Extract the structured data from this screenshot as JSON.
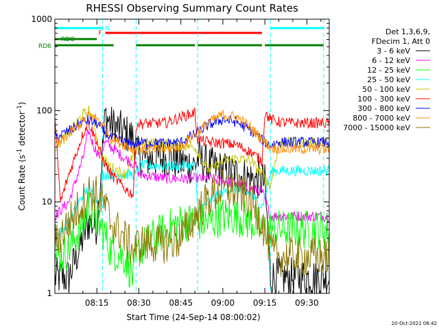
{
  "chart_data": {
    "type": "line",
    "title": "RHESSI Observing Summary Count Rates",
    "xlabel": "Start Time (24-Sep-14 08:00:02)",
    "ylabel": "Count Rate (s",
    "ylabel_sup1": "-1",
    "ylabel_mid": " detector",
    "ylabel_sup2": "-1",
    "ylabel_end": ")",
    "y_scale": "log",
    "ylim": [
      1,
      1000
    ],
    "xlim": [
      "08:00",
      "09:38"
    ],
    "x_ticks": [
      "08:15",
      "08:30",
      "08:45",
      "09:00",
      "09:15",
      "09:30"
    ],
    "y_ticks": [
      "1",
      "10",
      "100",
      "1000"
    ],
    "legend_header": [
      "Det 1,3,6,9,",
      "FDecim 1, Att 0"
    ],
    "flags": [
      {
        "label": "N",
        "color": "#00ffff",
        "segments": [
          [
            "08:00",
            "08:17"
          ],
          [
            "09:17",
            "09:36"
          ]
        ]
      },
      {
        "label": "F",
        "color": "#ff0000",
        "segments": [
          [
            "08:18",
            "09:14"
          ]
        ]
      },
      {
        "label": "RDO",
        "color": "#008000",
        "segments": [
          [
            "08:00",
            "08:15"
          ]
        ]
      },
      {
        "label": "RD6",
        "color": "#008000",
        "segments": [
          [
            "08:00",
            "08:21"
          ],
          [
            "08:29",
            "08:50"
          ],
          [
            "08:51",
            "09:14"
          ],
          [
            "09:15",
            "09:36"
          ]
        ]
      }
    ],
    "day_night_lines": [
      "08:17",
      "08:29",
      "08:51",
      "09:17",
      "09:36"
    ],
    "series": [
      {
        "name": "3 - 6 keV",
        "color": "#000000",
        "x": [
          "08:00",
          "08:05",
          "08:10",
          "08:12",
          "08:15",
          "08:18",
          "08:20",
          "08:24",
          "08:28",
          "08:30",
          "08:35",
          "08:40",
          "08:45",
          "08:50",
          "08:51",
          "08:55",
          "09:00",
          "09:05",
          "09:10",
          "09:14",
          "09:15",
          "09:17",
          "09:20",
          "09:25",
          "09:30",
          "09:36"
        ],
        "values": [
          1.5,
          1.5,
          4,
          6,
          5.5,
          90,
          70,
          60,
          50,
          30,
          30,
          30,
          27,
          25,
          30,
          25,
          22,
          20,
          18,
          17,
          16,
          1.5,
          1.5,
          1.5,
          1.5,
          1.5
        ]
      },
      {
        "name": "6 - 12 keV",
        "color": "#ff00ff",
        "x": [
          "08:00",
          "08:05",
          "08:10",
          "08:12",
          "08:14",
          "08:16",
          "08:18",
          "08:20",
          "08:25",
          "08:29",
          "08:30",
          "08:35",
          "08:40",
          "08:45",
          "08:50",
          "08:51",
          "08:55",
          "09:00",
          "09:05",
          "09:10",
          "09:14",
          "09:17",
          "09:20",
          "09:25",
          "09:30",
          "09:36"
        ],
        "values": [
          7,
          10,
          30,
          60,
          40,
          32,
          45,
          40,
          30,
          25,
          20,
          19,
          18,
          18,
          18,
          18,
          18,
          17,
          16,
          14,
          13,
          7,
          7,
          7,
          7,
          7
        ]
      },
      {
        "name": "12 - 25 keV",
        "color": "#00ff00",
        "x": [
          "08:00",
          "08:05",
          "08:10",
          "08:12",
          "08:14",
          "08:17",
          "08:20",
          "08:25",
          "08:28",
          "08:30",
          "08:35",
          "08:40",
          "08:45",
          "08:50",
          "08:55",
          "09:00",
          "09:05",
          "09:10",
          "09:15",
          "09:20",
          "09:25",
          "09:30",
          "09:36"
        ],
        "values": [
          2.5,
          3,
          6,
          9,
          7,
          5,
          3,
          2.5,
          1.5,
          3,
          4,
          5,
          6,
          6,
          6,
          7,
          7,
          6,
          5,
          5,
          5,
          5,
          5
        ]
      },
      {
        "name": "25 - 50 keV",
        "color": "#00ffff",
        "x": [
          "08:00",
          "08:05",
          "08:10",
          "08:12",
          "08:14",
          "08:16",
          "08:17",
          "08:20",
          "08:25",
          "08:29",
          "08:30",
          "08:35",
          "08:40",
          "08:45",
          "08:50",
          "08:51",
          "08:55",
          "09:00",
          "09:05",
          "09:10",
          "09:14",
          "09:17",
          "09:18",
          "09:25",
          "09:30",
          "09:36"
        ],
        "values": [
          4,
          6,
          12,
          14,
          12,
          9,
          20,
          20,
          20,
          20,
          25,
          25,
          25,
          25,
          25,
          8,
          10,
          13,
          14,
          12,
          9,
          20,
          22,
          22,
          22,
          22
        ]
      },
      {
        "name": "50 - 100 keV",
        "color": "#c8c800",
        "x": [
          "08:00",
          "08:05",
          "08:08",
          "08:10",
          "08:12",
          "08:14",
          "08:16",
          "08:18",
          "08:20",
          "08:25",
          "08:30",
          "08:35",
          "08:40",
          "08:45",
          "08:50",
          "08:55",
          "09:00",
          "09:05",
          "09:10",
          "09:14",
          "09:17",
          "09:20",
          "09:25",
          "09:30",
          "09:36"
        ],
        "values": [
          40,
          55,
          75,
          90,
          100,
          75,
          35,
          28,
          24,
          20,
          45,
          44,
          43,
          42,
          40,
          22,
          28,
          30,
          28,
          20,
          15,
          45,
          45,
          45,
          45
        ]
      },
      {
        "name": "100 - 300 keV",
        "color": "#ff0000",
        "x": [
          "08:00",
          "08:02",
          "08:05",
          "08:10",
          "08:12",
          "08:15",
          "08:17",
          "08:20",
          "08:25",
          "08:28",
          "08:29",
          "08:30",
          "08:35",
          "08:40",
          "08:45",
          "08:50",
          "08:51",
          "08:55",
          "09:00",
          "09:05",
          "09:10",
          "09:14",
          "09:15",
          "09:17",
          "09:20",
          "09:25",
          "09:30",
          "09:36"
        ],
        "values": [
          80,
          10,
          20,
          55,
          75,
          45,
          30,
          20,
          14,
          12,
          70,
          72,
          72,
          74,
          85,
          95,
          48,
          45,
          44,
          42,
          35,
          28,
          95,
          80,
          75,
          73,
          73,
          73
        ]
      },
      {
        "name": "300 - 800 keV",
        "color": "#0000ff",
        "x": [
          "08:00",
          "08:05",
          "08:10",
          "08:12",
          "08:15",
          "08:18",
          "08:20",
          "08:25",
          "08:28",
          "08:30",
          "08:35",
          "08:40",
          "08:45",
          "08:50",
          "08:55",
          "09:00",
          "09:05",
          "09:10",
          "09:15",
          "09:17",
          "09:20",
          "09:25",
          "09:30",
          "09:36"
        ],
        "values": [
          50,
          60,
          75,
          78,
          72,
          58,
          50,
          45,
          42,
          45,
          44,
          44,
          45,
          55,
          70,
          80,
          75,
          60,
          45,
          42,
          45,
          45,
          45,
          45
        ]
      },
      {
        "name": "800 - 7000 keV",
        "color": "#ff8c00",
        "x": [
          "08:00",
          "08:05",
          "08:10",
          "08:12",
          "08:15",
          "08:18",
          "08:20",
          "08:25",
          "08:28",
          "08:30",
          "08:35",
          "08:40",
          "08:45",
          "08:50",
          "08:55",
          "09:00",
          "09:05",
          "09:10",
          "09:15",
          "09:17",
          "09:20",
          "09:25",
          "09:30",
          "09:36"
        ],
        "values": [
          40,
          55,
          75,
          88,
          82,
          65,
          50,
          42,
          38,
          38,
          37,
          38,
          40,
          55,
          75,
          90,
          85,
          65,
          45,
          40,
          38,
          38,
          38,
          38
        ]
      },
      {
        "name": "7000 - 15000 keV",
        "color": "#8b7500",
        "x": [
          "08:00",
          "08:05",
          "08:10",
          "08:12",
          "08:15",
          "08:18",
          "08:20",
          "08:25",
          "08:28",
          "08:30",
          "08:35",
          "08:40",
          "08:45",
          "08:50",
          "08:55",
          "09:00",
          "09:05",
          "09:10",
          "09:14",
          "09:17",
          "09:20",
          "09:25",
          "09:30",
          "09:36"
        ],
        "values": [
          3.5,
          6,
          10,
          13,
          12,
          9,
          6,
          4,
          3,
          3.5,
          3.5,
          3.5,
          4,
          7,
          11,
          14,
          13,
          10,
          6,
          3,
          2.5,
          2.5,
          2.5,
          2.5
        ]
      }
    ]
  },
  "footer_date": "20-Oct-2021 08:42"
}
